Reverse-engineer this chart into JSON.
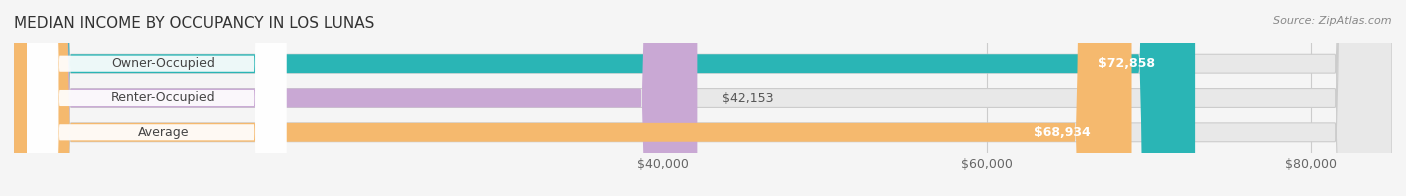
{
  "title": "MEDIAN INCOME BY OCCUPANCY IN LOS LUNAS",
  "source": "Source: ZipAtlas.com",
  "categories": [
    "Owner-Occupied",
    "Renter-Occupied",
    "Average"
  ],
  "values": [
    72858,
    42153,
    68934
  ],
  "bar_colors": [
    "#2ab5b5",
    "#c9a8d4",
    "#f5b96e"
  ],
  "value_labels": [
    "$72,858",
    "$42,153",
    "$68,934"
  ],
  "xmin": 0,
  "xmax": 85000,
  "xticks": [
    40000,
    60000,
    80000
  ],
  "xtick_labels": [
    "$40,000",
    "$60,000",
    "$80,000"
  ],
  "bar_height": 0.55,
  "background_color": "#f0f0f0",
  "bar_background_color": "#e8e8e8",
  "title_fontsize": 11,
  "source_fontsize": 8,
  "label_fontsize": 9,
  "value_fontsize": 9,
  "tick_fontsize": 9
}
